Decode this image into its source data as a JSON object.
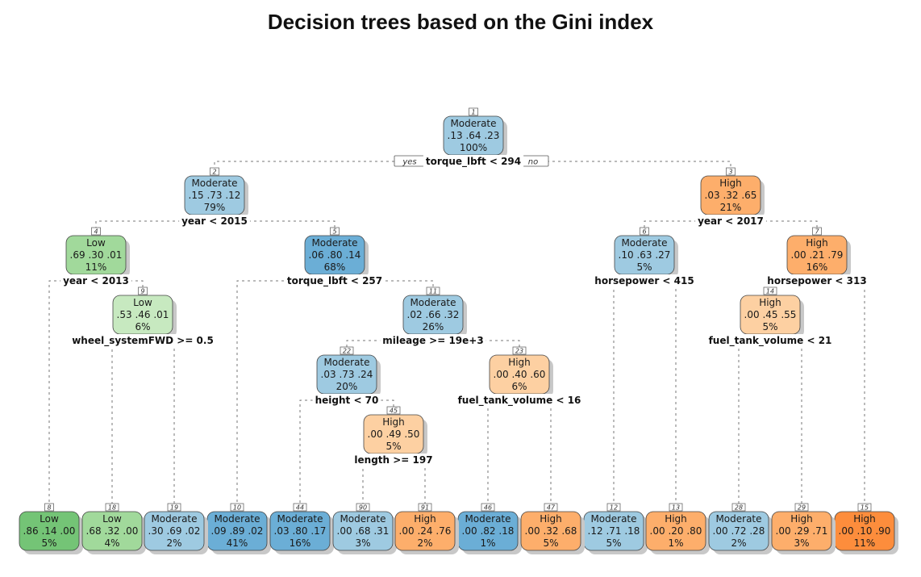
{
  "title": "Decision trees based on the Gini index",
  "branch_labels": {
    "yes": "yes",
    "no": "no"
  },
  "colors": {
    "low": [
      "#c7e9c0",
      "#a1d99b",
      "#74c476",
      "#41ab5d"
    ],
    "moderate": [
      "#c6dbef",
      "#9ecae1",
      "#6baed6",
      "#4292c6"
    ],
    "high": [
      "#fdd0a2",
      "#fdae6b",
      "#fd8d3c",
      "#f16913"
    ],
    "edge": "#777777"
  },
  "nodes": [
    {
      "id": "1",
      "cls": "Moderate",
      "probs": ".13  .64  .23",
      "pct": "100%",
      "split": "torque_lbft < 294",
      "shade": 1
    },
    {
      "id": "2",
      "cls": "Moderate",
      "probs": ".15  .73  .12",
      "pct": "79%",
      "split": "year < 2015",
      "shade": 1
    },
    {
      "id": "3",
      "cls": "High",
      "probs": ".03  .32  .65",
      "pct": "21%",
      "split": "year < 2017",
      "shade": 1
    },
    {
      "id": "4",
      "cls": "Low",
      "probs": ".69  .30  .01",
      "pct": "11%",
      "split": "year < 2013",
      "shade": 1
    },
    {
      "id": "5",
      "cls": "Moderate",
      "probs": ".06  .80  .14",
      "pct": "68%",
      "split": "torque_lbft < 257",
      "shade": 2
    },
    {
      "id": "6",
      "cls": "Moderate",
      "probs": ".10  .63  .27",
      "pct": "5%",
      "split": "horsepower < 415",
      "shade": 1
    },
    {
      "id": "7",
      "cls": "High",
      "probs": ".00  .21  .79",
      "pct": "16%",
      "split": "horsepower < 313",
      "shade": 1
    },
    {
      "id": "9",
      "cls": "Low",
      "probs": ".53  .46  .01",
      "pct": "6%",
      "split": "wheel_systemFWD >= 0.5",
      "shade": 0
    },
    {
      "id": "11",
      "cls": "Moderate",
      "probs": ".02  .66  .32",
      "pct": "26%",
      "split": "mileage >= 19e+3",
      "shade": 1
    },
    {
      "id": "14",
      "cls": "High",
      "probs": ".00  .45  .55",
      "pct": "5%",
      "split": "fuel_tank_volume < 21",
      "shade": 0
    },
    {
      "id": "22",
      "cls": "Moderate",
      "probs": ".03  .73  .24",
      "pct": "20%",
      "split": "height < 70",
      "shade": 1
    },
    {
      "id": "23",
      "cls": "High",
      "probs": ".00  .40  .60",
      "pct": "6%",
      "split": "fuel_tank_volume < 16",
      "shade": 0
    },
    {
      "id": "45",
      "cls": "High",
      "probs": ".00  .49  .50",
      "pct": "5%",
      "split": "length >= 197",
      "shade": 0
    },
    {
      "id": "8",
      "cls": "Low",
      "probs": ".86  .14  .00",
      "pct": "5%",
      "split": "",
      "shade": 2
    },
    {
      "id": "18",
      "cls": "Low",
      "probs": ".68  .32  .00",
      "pct": "4%",
      "split": "",
      "shade": 1
    },
    {
      "id": "19",
      "cls": "Moderate",
      "probs": ".30  .69  .02",
      "pct": "2%",
      "split": "",
      "shade": 1
    },
    {
      "id": "10",
      "cls": "Moderate",
      "probs": ".09  .89  .02",
      "pct": "41%",
      "split": "",
      "shade": 2
    },
    {
      "id": "44",
      "cls": "Moderate",
      "probs": ".03  .80  .17",
      "pct": "16%",
      "split": "",
      "shade": 2
    },
    {
      "id": "90",
      "cls": "Moderate",
      "probs": ".00  .68  .31",
      "pct": "3%",
      "split": "",
      "shade": 1
    },
    {
      "id": "91",
      "cls": "High",
      "probs": ".00  .24  .76",
      "pct": "2%",
      "split": "",
      "shade": 1
    },
    {
      "id": "46",
      "cls": "Moderate",
      "probs": ".00  .82  .18",
      "pct": "1%",
      "split": "",
      "shade": 2
    },
    {
      "id": "47",
      "cls": "High",
      "probs": ".00  .32  .68",
      "pct": "5%",
      "split": "",
      "shade": 1
    },
    {
      "id": "12",
      "cls": "Moderate",
      "probs": ".12  .71  .18",
      "pct": "5%",
      "split": "",
      "shade": 1
    },
    {
      "id": "13",
      "cls": "High",
      "probs": ".00  .20  .80",
      "pct": "1%",
      "split": "",
      "shade": 1
    },
    {
      "id": "28",
      "cls": "Moderate",
      "probs": ".00  .72  .28",
      "pct": "2%",
      "split": "",
      "shade": 1
    },
    {
      "id": "29",
      "cls": "High",
      "probs": ".00  .29  .71",
      "pct": "3%",
      "split": "",
      "shade": 1
    },
    {
      "id": "15",
      "cls": "High",
      "probs": ".00  .10  .90",
      "pct": "11%",
      "split": "",
      "shade": 2
    }
  ],
  "edges": [
    [
      "1",
      "2"
    ],
    [
      "1",
      "3"
    ],
    [
      "2",
      "4"
    ],
    [
      "2",
      "5"
    ],
    [
      "3",
      "6"
    ],
    [
      "3",
      "7"
    ],
    [
      "4",
      "8"
    ],
    [
      "4",
      "9"
    ],
    [
      "9",
      "18"
    ],
    [
      "9",
      "19"
    ],
    [
      "5",
      "10"
    ],
    [
      "5",
      "11"
    ],
    [
      "11",
      "22"
    ],
    [
      "11",
      "23"
    ],
    [
      "22",
      "44"
    ],
    [
      "22",
      "45"
    ],
    [
      "45",
      "90"
    ],
    [
      "45",
      "91"
    ],
    [
      "23",
      "46"
    ],
    [
      "23",
      "47"
    ],
    [
      "6",
      "12"
    ],
    [
      "6",
      "13"
    ],
    [
      "7",
      "14"
    ],
    [
      "7",
      "15"
    ],
    [
      "14",
      "28"
    ],
    [
      "14",
      "29"
    ]
  ]
}
